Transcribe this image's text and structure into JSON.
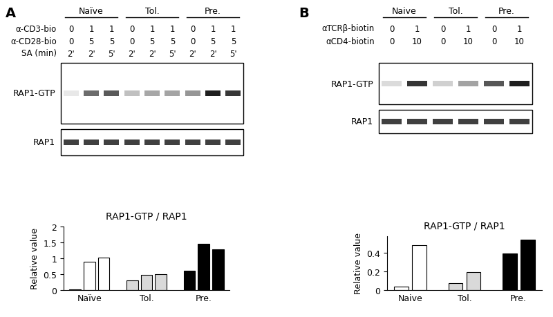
{
  "chart_data": [
    {
      "type": "bar",
      "title": "RAP1-GTP / RAP1",
      "y_label": "Relative value",
      "categories": [
        "Naïve",
        "Tol.",
        "Pre."
      ],
      "values": [
        [
          0.02,
          0.9,
          1.03
        ],
        [
          0.3,
          0.48,
          0.5
        ],
        [
          0.6,
          1.45,
          1.28
        ]
      ],
      "colors": [
        "#ffffff",
        "#d9d9d9",
        "#000000"
      ],
      "ylim": [
        0,
        2
      ],
      "yticks": [
        0,
        0.5,
        1,
        1.5,
        2
      ]
    },
    {
      "type": "bar",
      "title": "RAP1-GTP / RAP1",
      "y_label": "Relative value",
      "categories": [
        "Naive",
        "Tol.",
        "Pre."
      ],
      "values": [
        [
          0.04,
          0.48
        ],
        [
          0.07,
          0.19
        ],
        [
          0.39,
          0.54
        ]
      ],
      "colors": [
        "#ffffff",
        "#d9d9d9",
        "#000000"
      ],
      "ylim": [
        0,
        0.58
      ],
      "yticks": [
        0,
        0.2,
        0.4
      ]
    }
  ],
  "blots": [
    {
      "panel": "A",
      "groups": [
        "Naïve",
        "Tol.",
        "Pre."
      ],
      "treatments": [
        {
          "label": "α-CD3-bio",
          "values": [
            0,
            1,
            1,
            0,
            1,
            1,
            0,
            1,
            1
          ]
        },
        {
          "label": "α-CD28-bio",
          "values": [
            0,
            5,
            5,
            0,
            5,
            5,
            0,
            5,
            5
          ]
        },
        {
          "label": "SA (min)",
          "values": [
            "2'",
            "2'",
            "5'",
            "2'",
            "2'",
            "5'",
            "2'",
            "2'",
            "5'"
          ]
        }
      ],
      "bands": [
        "RAP1-GTP",
        "RAP1"
      ]
    },
    {
      "panel": "B",
      "groups": [
        "Naive",
        "Tol.",
        "Pre."
      ],
      "treatments": [
        {
          "label": "αTCRβ-biotin",
          "values": [
            0,
            1,
            0,
            1,
            0,
            1
          ]
        },
        {
          "label": "αCD4-biotin",
          "values": [
            0,
            10,
            0,
            10,
            0,
            10
          ]
        }
      ],
      "bands": [
        "RAP1-GTP",
        "RAP1"
      ]
    }
  ]
}
